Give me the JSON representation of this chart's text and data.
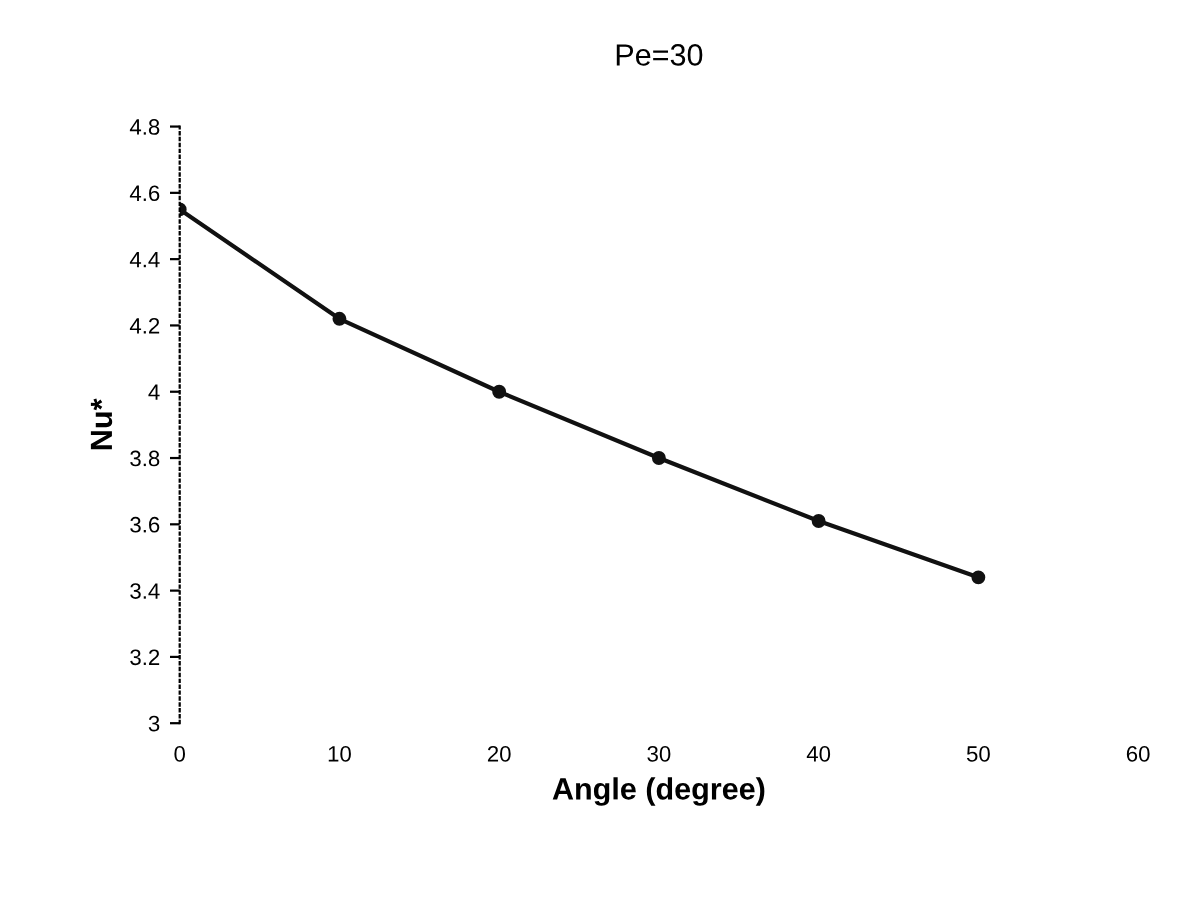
{
  "chart_data": {
    "type": "line",
    "title": "Pe=30",
    "xlabel": "Angle (degree)",
    "ylabel": "Nu*",
    "x": [
      0,
      10,
      20,
      30,
      40,
      50
    ],
    "series": [
      {
        "color": "#111111",
        "values": [
          4.55,
          4.22,
          4.0,
          3.8,
          3.61,
          3.44
        ]
      }
    ],
    "xlim": [
      0,
      60
    ],
    "xticks": [
      0,
      10,
      20,
      30,
      40,
      50,
      60
    ],
    "ylim": [
      3,
      4.8
    ],
    "yticks": [
      3,
      3.2,
      3.4,
      3.6,
      3.8,
      4,
      4.2,
      4.4,
      4.6,
      4.8
    ],
    "marker": "circle",
    "line_style": "solid",
    "grid": false,
    "legend": false
  }
}
